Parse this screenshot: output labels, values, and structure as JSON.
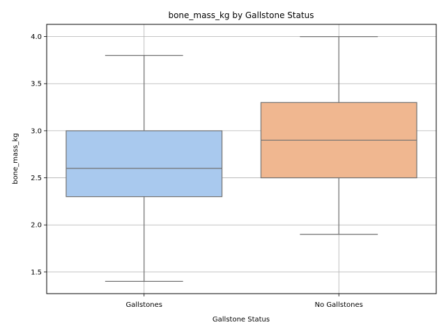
{
  "chart_data": {
    "type": "box",
    "title": "bone_mass_kg by Gallstone Status",
    "xlabel": "Gallstone Status",
    "ylabel": "bone_mass_kg",
    "ylim": [
      1.27,
      4.13
    ],
    "yticks": [
      "1.5",
      "2.0",
      "2.5",
      "3.0",
      "3.5",
      "4.0"
    ],
    "grid": true,
    "categories": [
      "Gallstones",
      "No Gallstones"
    ],
    "boxes": [
      {
        "category": "Gallstones",
        "whisker_low": 1.4,
        "q1": 2.3,
        "median": 2.6,
        "q3": 3.0,
        "whisker_high": 3.8,
        "color": "#a9c9ee"
      },
      {
        "category": "No Gallstones",
        "whisker_low": 1.9,
        "q1": 2.5,
        "median": 2.9,
        "q3": 3.3,
        "whisker_high": 4.0,
        "color": "#f0b790"
      }
    ],
    "colors": {
      "box_edge": "#707070",
      "grid": "#b0b0b0",
      "axis": "#000000"
    }
  }
}
